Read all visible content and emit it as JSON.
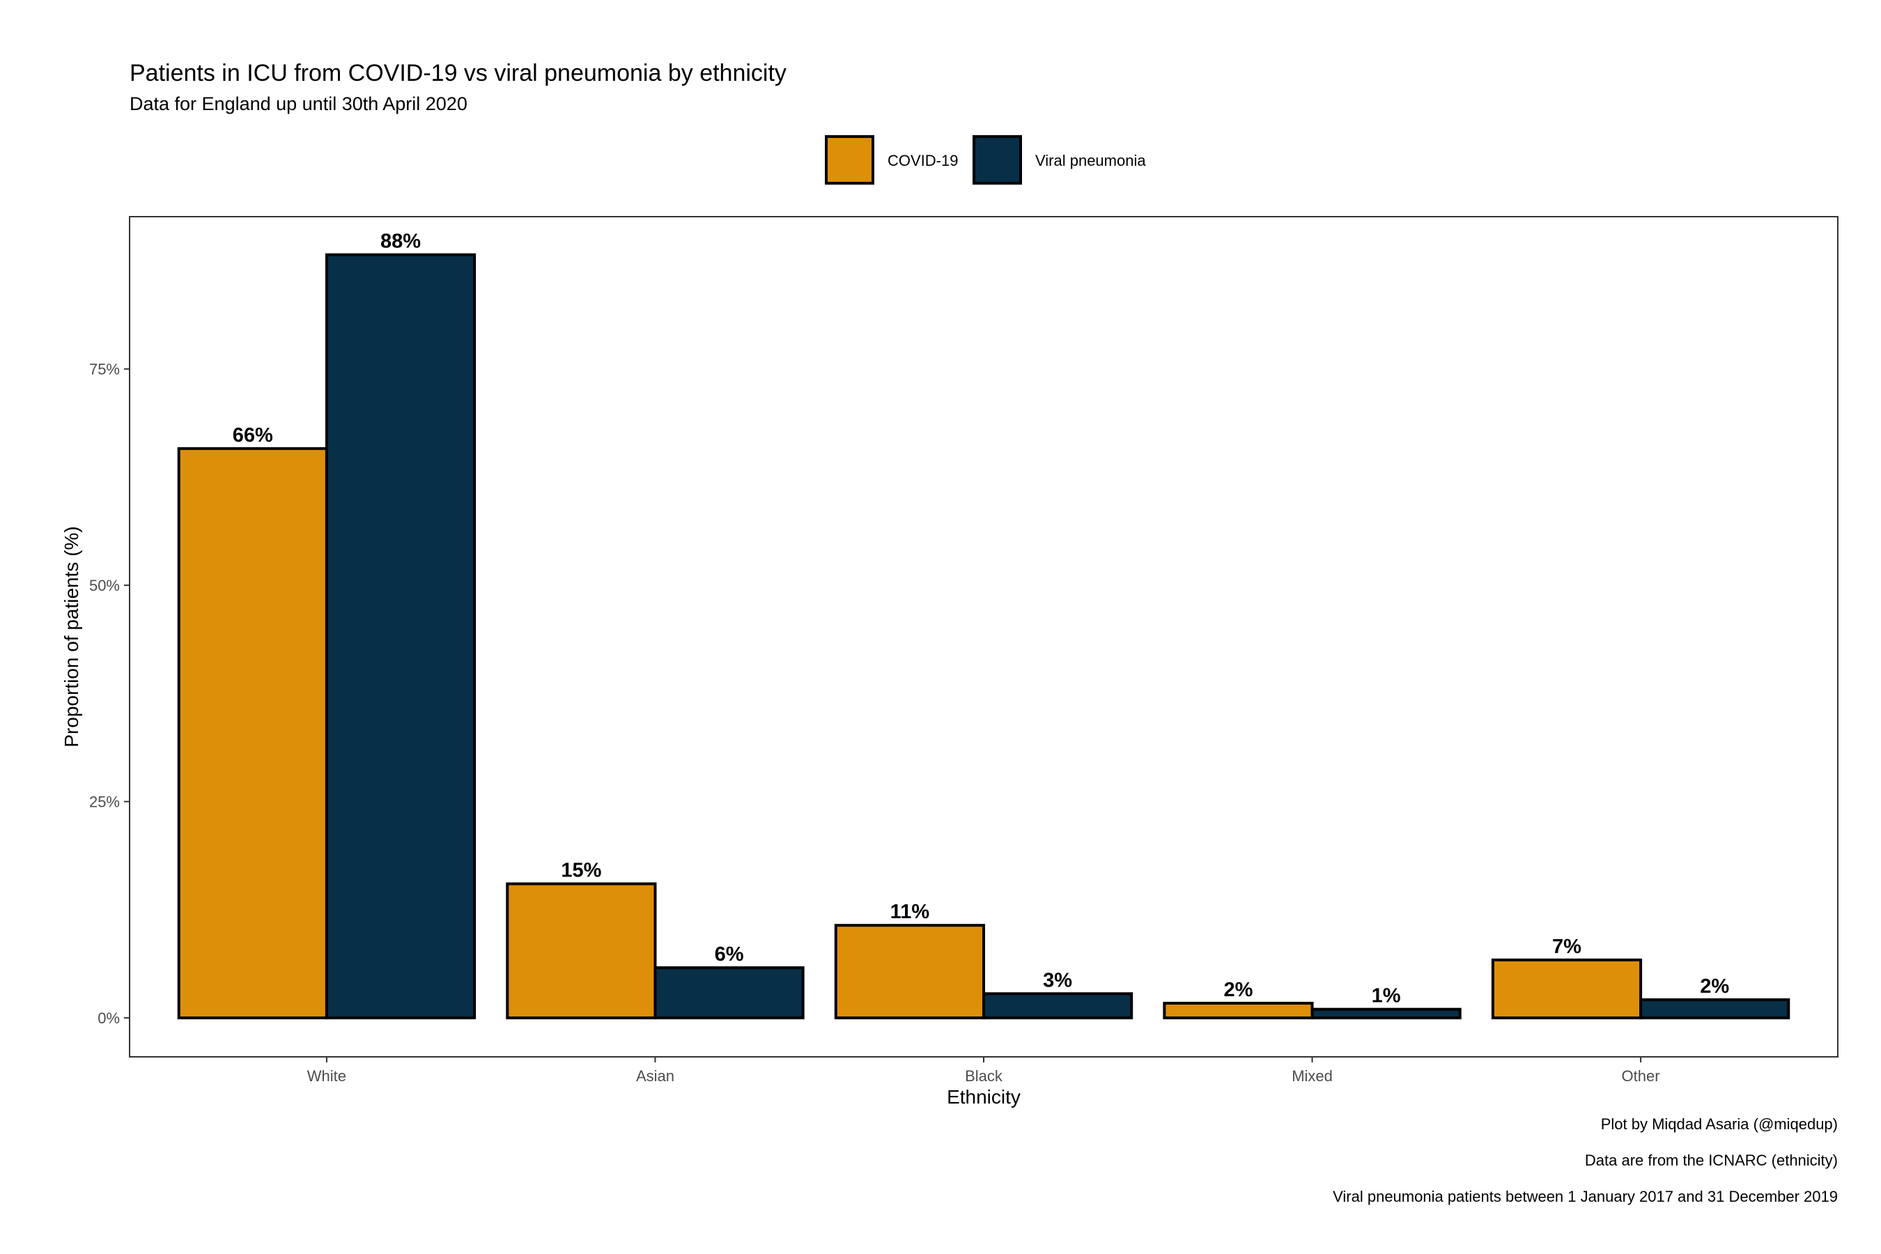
{
  "chart_data": {
    "type": "bar",
    "title": "Patients in ICU from COVID-19 vs viral pneumonia by ethnicity",
    "subtitle": "Data for England up until 30th April 2020",
    "xlabel": "Ethnicity",
    "ylabel": "Proportion of patients (%)",
    "categories": [
      "White",
      "Asian",
      "Black",
      "Mixed",
      "Other"
    ],
    "series": [
      {
        "name": "COVID-19",
        "color": "#DE8F09",
        "values": [
          65.8,
          15.5,
          10.7,
          1.7,
          6.7
        ],
        "labels": [
          "66%",
          "15%",
          "11%",
          "2%",
          "7%"
        ]
      },
      {
        "name": "Viral pneumonia",
        "color": "#072F48",
        "values": [
          88.2,
          5.8,
          2.8,
          1.0,
          2.1
        ],
        "labels": [
          "88%",
          "6%",
          "3%",
          "1%",
          "2%"
        ]
      }
    ],
    "ylim": [
      -4.5,
      92.6
    ],
    "yticks": [
      0,
      25,
      50,
      75
    ],
    "ytick_labels": [
      "0%",
      "25%",
      "50%",
      "75%"
    ],
    "legend_position": "top",
    "grid": false,
    "captions": [
      "Plot by Miqdad Asaria (@miqedup)",
      "Data are from the ICNARC (ethnicity)",
      "Viral pneumonia patients between 1 January 2017 and 31 December 2019"
    ]
  }
}
